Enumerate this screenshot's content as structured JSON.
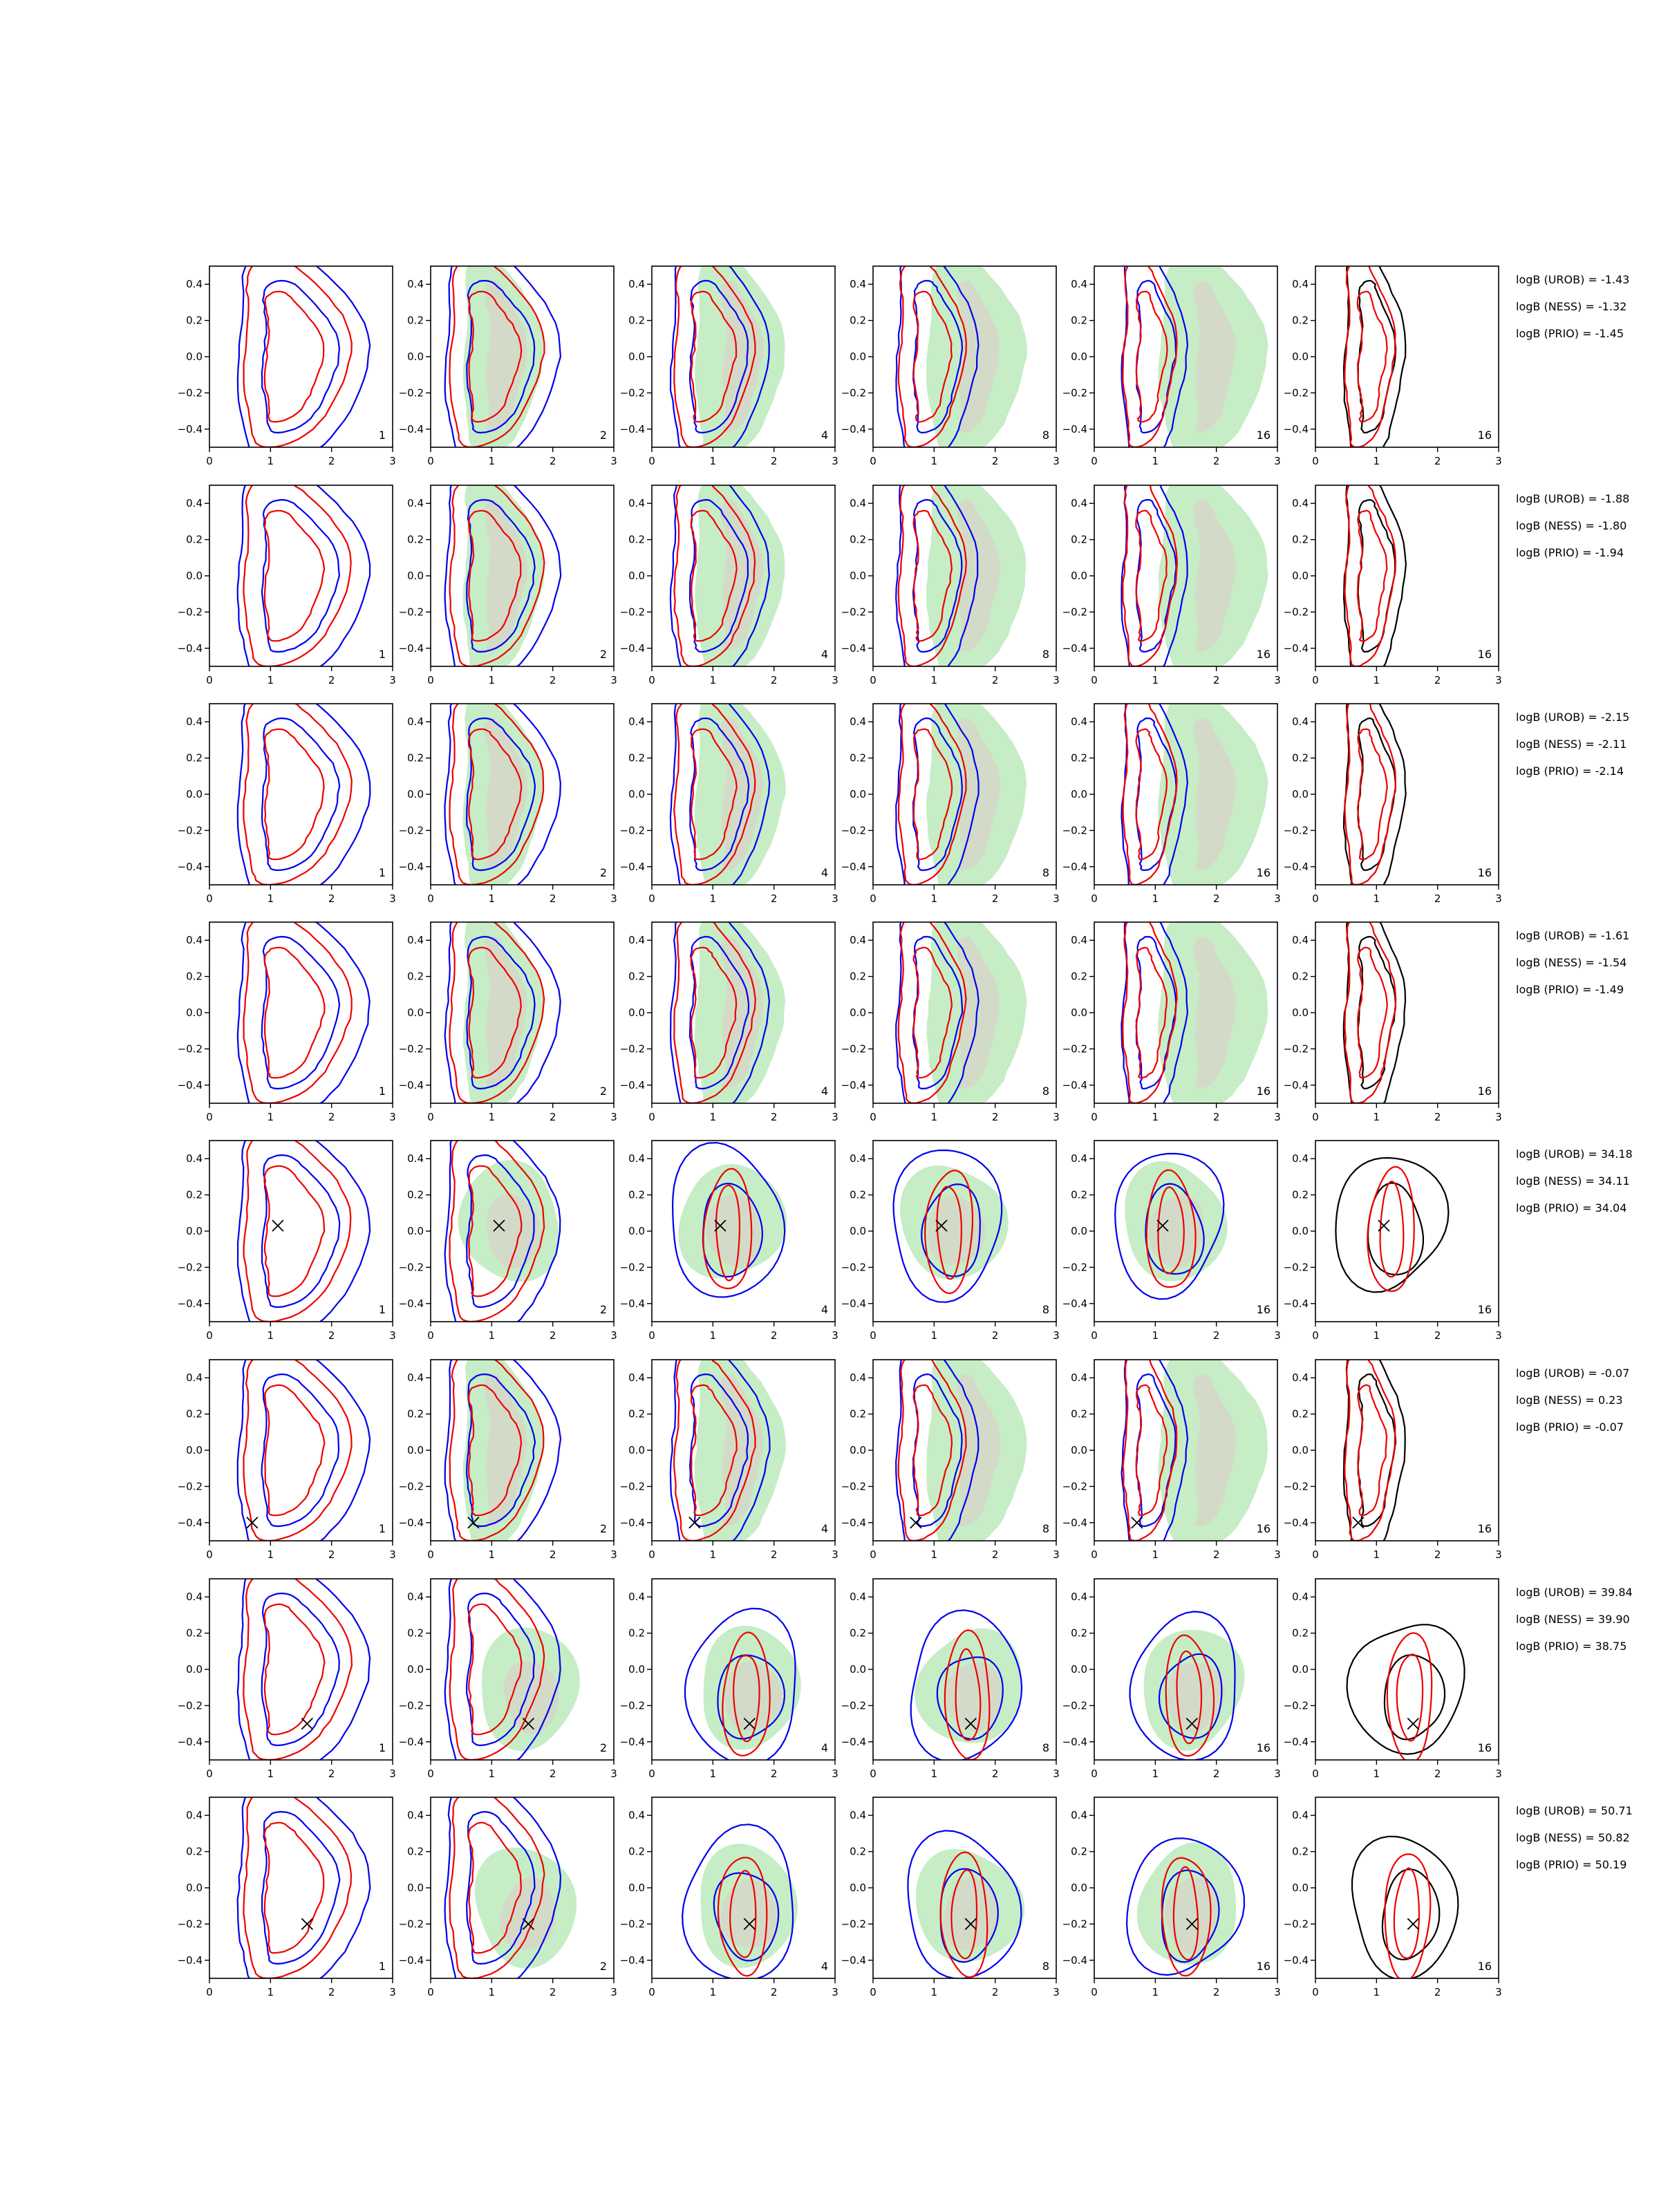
{
  "figure": {
    "layout": "8 rows x 6 panels, logB annotations at right of each row",
    "colors": {
      "blue_contour": "#0000ee",
      "red_contour": "#ee0000",
      "black_contour": "#000000",
      "green_fill": "#c6edc6",
      "grey_fill": "#d6d6c8"
    }
  },
  "chart_data": {
    "type": "contour-grid",
    "xlim": [
      0,
      3
    ],
    "ylim": [
      -0.5,
      0.5
    ],
    "xticks": [
      "0",
      "1",
      "2",
      "3"
    ],
    "yticks": [
      "0.4",
      "0.2",
      "0.0",
      "−0.2",
      "−0.4"
    ],
    "yticks_values": [
      0.4,
      0.2,
      0.0,
      -0.2,
      -0.4
    ],
    "panel_labels": [
      "1",
      "2",
      "4",
      "8",
      "16",
      "16"
    ],
    "rows": [
      {
        "annotations": [
          "logB (UROB) = -1.43",
          "logB (NESS) = -1.32",
          "logB (PRIO) = -1.45"
        ],
        "marker": null
      },
      {
        "annotations": [
          "logB (UROB) = -1.88",
          "logB (NESS) = -1.80",
          "logB (PRIO) = -1.94"
        ],
        "marker": null
      },
      {
        "annotations": [
          "logB (UROB) = -2.15",
          "logB (NESS) = -2.11",
          "logB (PRIO) = -2.14"
        ],
        "marker": null
      },
      {
        "annotations": [
          "logB (UROB) = -1.61",
          "logB (NESS) = -1.54",
          "logB (PRIO) = -1.49"
        ],
        "marker": null
      },
      {
        "annotations": [
          "logB (UROB) = 34.18",
          "logB (NESS) = 34.11",
          "logB (PRIO) = 34.04"
        ],
        "marker": [
          1.12,
          0.03
        ]
      },
      {
        "annotations": [
          "logB (UROB) = -0.07",
          "logB (NESS) = 0.23",
          "logB (PRIO) = -0.07"
        ],
        "marker": [
          0.7,
          -0.4
        ]
      },
      {
        "annotations": [
          "logB (UROB) = 39.84",
          "logB (NESS) = 39.90",
          "logB (PRIO) = 38.75"
        ],
        "marker": [
          1.6,
          -0.3
        ]
      },
      {
        "annotations": [
          "logB (UROB) = 50.71",
          "logB (NESS) = 50.82",
          "logB (PRIO) = 50.19"
        ],
        "marker": [
          1.6,
          -0.2
        ]
      }
    ]
  }
}
